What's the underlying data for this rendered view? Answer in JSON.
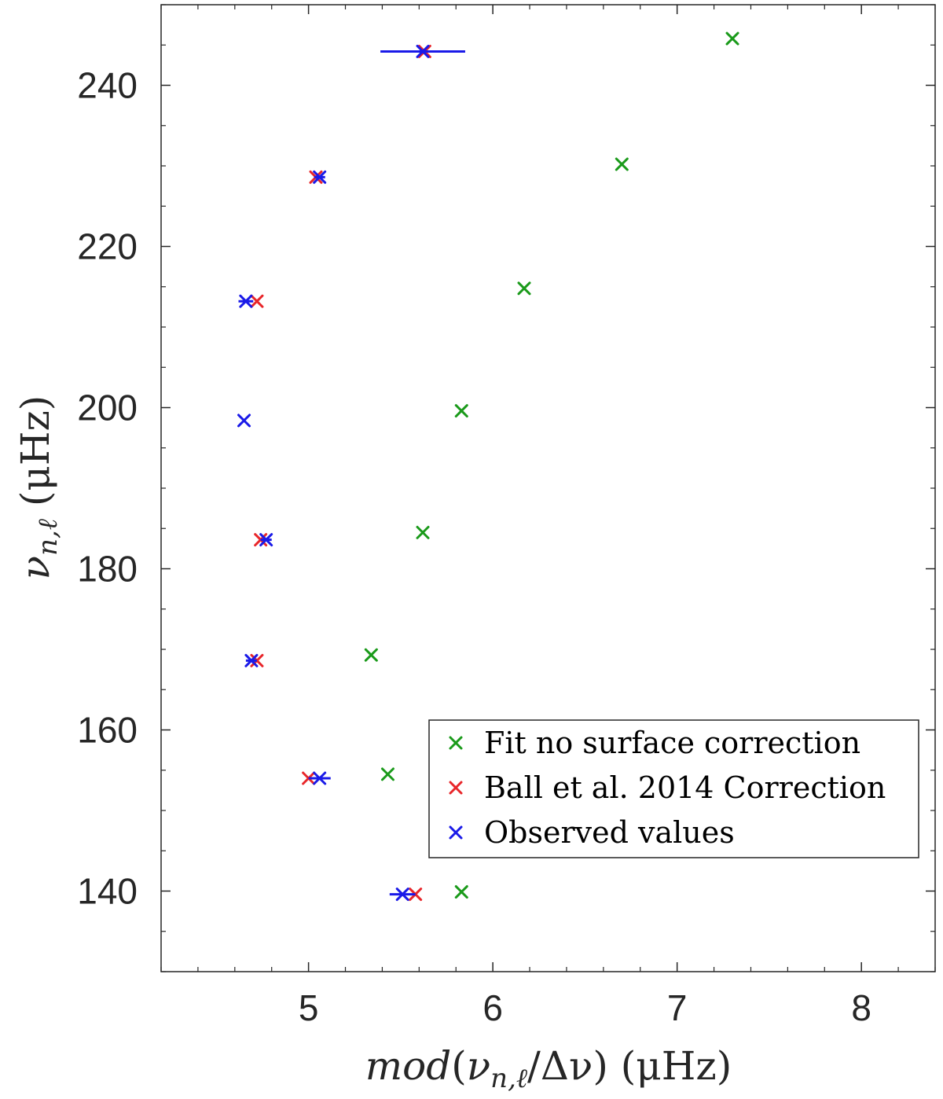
{
  "chart_data": {
    "type": "scatter",
    "title": "",
    "xlabel": "mod(ν_{n,ℓ}/Δν) (μHz)",
    "xlabel_parts": {
      "mod": "mod",
      "nu": "ν",
      "sub": "n,ℓ",
      "slash": "/Δν)",
      "unit": " (μHz)"
    },
    "ylabel_parts": {
      "nu": "ν",
      "sub": "n,ℓ",
      "unit": " (μHz)"
    },
    "xlim": [
      4.2,
      8.4
    ],
    "ylim": [
      130,
      250
    ],
    "xticks": [
      5,
      6,
      7,
      8
    ],
    "yticks": [
      140,
      160,
      180,
      200,
      220,
      240
    ],
    "grid": false,
    "legend_position": "lower-right",
    "series": [
      {
        "name": "Fit no surface correction",
        "color": "#1a9a1a",
        "points": [
          {
            "x": 7.3,
            "y": 245.8
          },
          {
            "x": 6.7,
            "y": 230.2
          },
          {
            "x": 6.17,
            "y": 214.8
          },
          {
            "x": 5.83,
            "y": 199.6
          },
          {
            "x": 5.62,
            "y": 184.5
          },
          {
            "x": 5.34,
            "y": 169.3
          },
          {
            "x": 5.43,
            "y": 154.5
          },
          {
            "x": 5.83,
            "y": 139.9
          }
        ]
      },
      {
        "name": "Ball et al. 2014 Correction",
        "color": "#e8262a",
        "points": [
          {
            "x": 5.63,
            "y": 244.2
          },
          {
            "x": 5.04,
            "y": 228.6
          },
          {
            "x": 4.72,
            "y": 213.2
          },
          {
            "x": 4.74,
            "y": 183.6
          },
          {
            "x": 4.72,
            "y": 168.6
          },
          {
            "x": 5.0,
            "y": 154.0
          },
          {
            "x": 5.58,
            "y": 139.6
          }
        ]
      },
      {
        "name": "Observed values",
        "color": "#1a1ae8",
        "points": [
          {
            "x": 5.62,
            "y": 244.2,
            "xerr": 0.23
          },
          {
            "x": 5.06,
            "y": 228.6,
            "xerr": 0.03
          },
          {
            "x": 4.66,
            "y": 213.2,
            "xerr": 0.04
          },
          {
            "x": 4.65,
            "y": 198.4,
            "xerr": 0.0
          },
          {
            "x": 4.77,
            "y": 183.6,
            "xerr": 0.03
          },
          {
            "x": 4.69,
            "y": 168.6,
            "xerr": 0.03
          },
          {
            "x": 5.06,
            "y": 154.0,
            "xerr": 0.06
          },
          {
            "x": 5.51,
            "y": 139.6,
            "xerr": 0.07
          }
        ]
      }
    ]
  }
}
